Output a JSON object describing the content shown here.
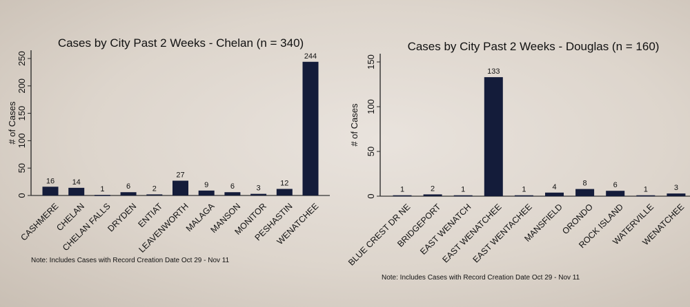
{
  "chart_data": [
    {
      "type": "bar",
      "title": "Cases by City Past 2 Weeks - Chelan (n = 340)",
      "xlabel": "",
      "ylabel": "# of Cases",
      "ylim": [
        0,
        265
      ],
      "yticks": [
        0,
        50,
        100,
        150,
        200,
        250
      ],
      "categories": [
        "CASHMERE",
        "CHELAN",
        "CHELAN FALLS",
        "DRYDEN",
        "ENTIAT",
        "LEAVENWORTH",
        "MALAGA",
        "MANSON",
        "MONITOR",
        "PESHASTIN",
        "WENATCHEE"
      ],
      "values": [
        16,
        14,
        1,
        6,
        2,
        27,
        9,
        6,
        3,
        12,
        244
      ],
      "note": "Note: Includes Cases with Record Creation Date Oct 29 - Nov 11",
      "bar_color": "#141c3a",
      "grid": false
    },
    {
      "type": "bar",
      "title": "Cases by City Past 2 Weeks - Douglas (n = 160)",
      "xlabel": "",
      "ylabel": "# of Cases",
      "ylim": [
        0,
        160
      ],
      "yticks": [
        0,
        50,
        100,
        150
      ],
      "categories": [
        "BLUE CREST DR NE",
        "BRIDGEPORT",
        "EAST WENATCH",
        "EAST WENATCHEE",
        "EAST WENTACHEE",
        "MANSFIELD",
        "ORONDO",
        "ROCK ISLAND",
        "WATERVILLE",
        "WENATCHEE"
      ],
      "values": [
        1,
        2,
        1,
        133,
        1,
        4,
        8,
        6,
        1,
        3
      ],
      "note": "Note: Includes Cases with Record Creation Date Oct 29 - Nov 11",
      "bar_color": "#141c3a",
      "grid": false
    }
  ]
}
